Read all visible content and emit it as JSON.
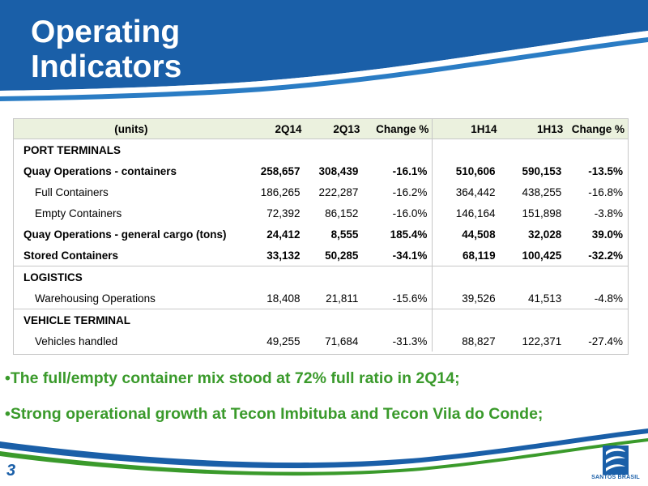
{
  "title": {
    "line1": "Operating",
    "line2": "Indicators"
  },
  "table": {
    "headers": [
      "(units)",
      "2Q14",
      "2Q13",
      "Change %",
      "1H14",
      "1H13",
      "Change %"
    ],
    "rows": [
      {
        "label": "PORT TERMINALS",
        "values": [
          "",
          "",
          "",
          "",
          "",
          ""
        ]
      },
      {
        "label": "Quay Operations - containers",
        "values": [
          "258,657",
          "308,439",
          "-16.1%",
          "510,606",
          "590,153",
          "-13.5%"
        ]
      },
      {
        "label": "Full Containers",
        "values": [
          "186,265",
          "222,287",
          "-16.2%",
          "364,442",
          "438,255",
          "-16.8%"
        ]
      },
      {
        "label": "Empty Containers",
        "values": [
          "72,392",
          "86,152",
          "-16.0%",
          "146,164",
          "151,898",
          "-3.8%"
        ]
      },
      {
        "label": "Quay Operations - general cargo (tons)",
        "values": [
          "24,412",
          "8,555",
          "185.4%",
          "44,508",
          "32,028",
          "39.0%"
        ]
      },
      {
        "label": "Stored Containers",
        "values": [
          "33,132",
          "50,285",
          "-34.1%",
          "68,119",
          "100,425",
          "-32.2%"
        ]
      },
      {
        "label": "LOGISTICS",
        "values": [
          "",
          "",
          "",
          "",
          "",
          ""
        ]
      },
      {
        "label": "Warehousing Operations",
        "values": [
          "18,408",
          "21,811",
          "-15.6%",
          "39,526",
          "41,513",
          "-4.8%"
        ]
      },
      {
        "label": "VEHICLE TERMINAL",
        "values": [
          "",
          "",
          "",
          "",
          "",
          ""
        ]
      },
      {
        "label": "Vehicles handled",
        "values": [
          "49,255",
          "71,684",
          "-31.3%",
          "88,827",
          "122,371",
          "-27.4%"
        ]
      }
    ]
  },
  "bullets": [
    "•The full/empty container mix stood at 72% full ratio in 2Q14;",
    "•Strong operational growth at Tecon Imbituba and Tecon Vila do Conde;"
  ],
  "page_number": "3",
  "logo_text": "SANTOS BRASIL",
  "colors": {
    "brand_blue": "#1a5fa8",
    "bullet_green": "#3a9a2b",
    "header_fill": "#ebf1de"
  }
}
